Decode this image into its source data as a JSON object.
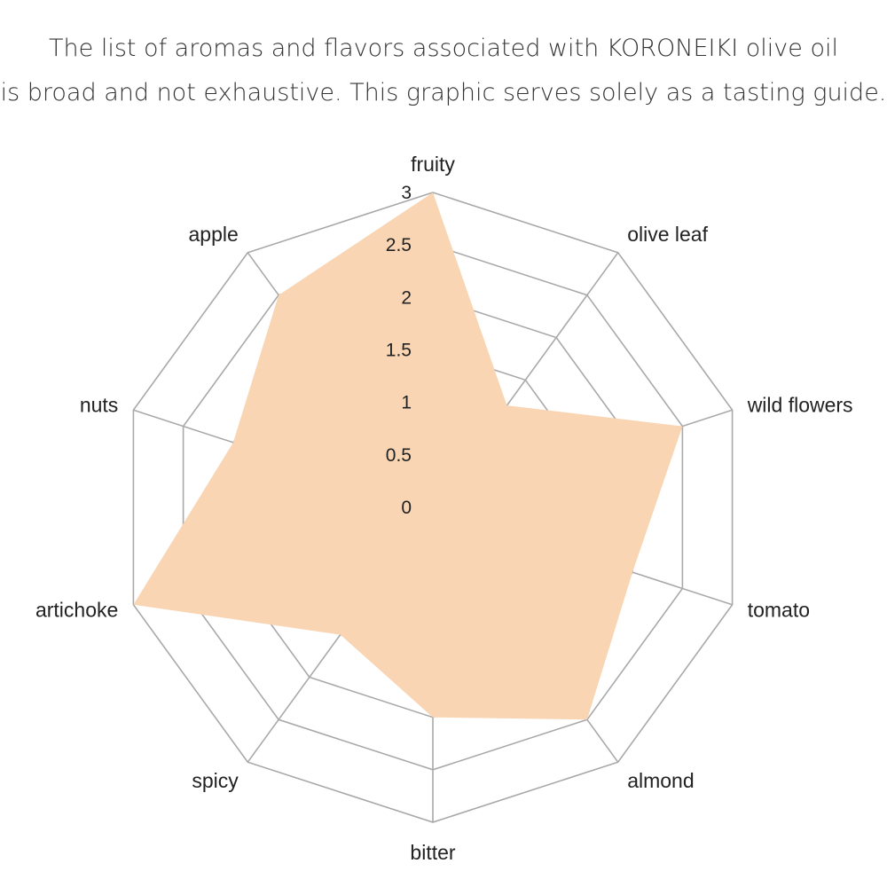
{
  "header": {
    "line1": "The list of aromas and flavors associated with KORONEIKI olive oil",
    "line2": "is broad and not exhaustive. This graphic serves solely as a tasting guide."
  },
  "chart_data": {
    "type": "radar",
    "categories": [
      "fruity",
      "olive leaf",
      "wild flowers",
      "tomato",
      "almond",
      "bitter",
      "spicy",
      "artichoke",
      "nuts",
      "apple"
    ],
    "values": [
      3,
      1.2,
      2.5,
      2,
      2.5,
      2,
      1.5,
      3,
      2,
      2.5
    ],
    "r_ticks": [
      "0",
      "0.5",
      "1",
      "1.5",
      "2",
      "2.5",
      "3"
    ],
    "rlim": [
      0,
      3
    ],
    "fill_color": "#f9d5b3",
    "grid_color": "#a9a9a9"
  }
}
